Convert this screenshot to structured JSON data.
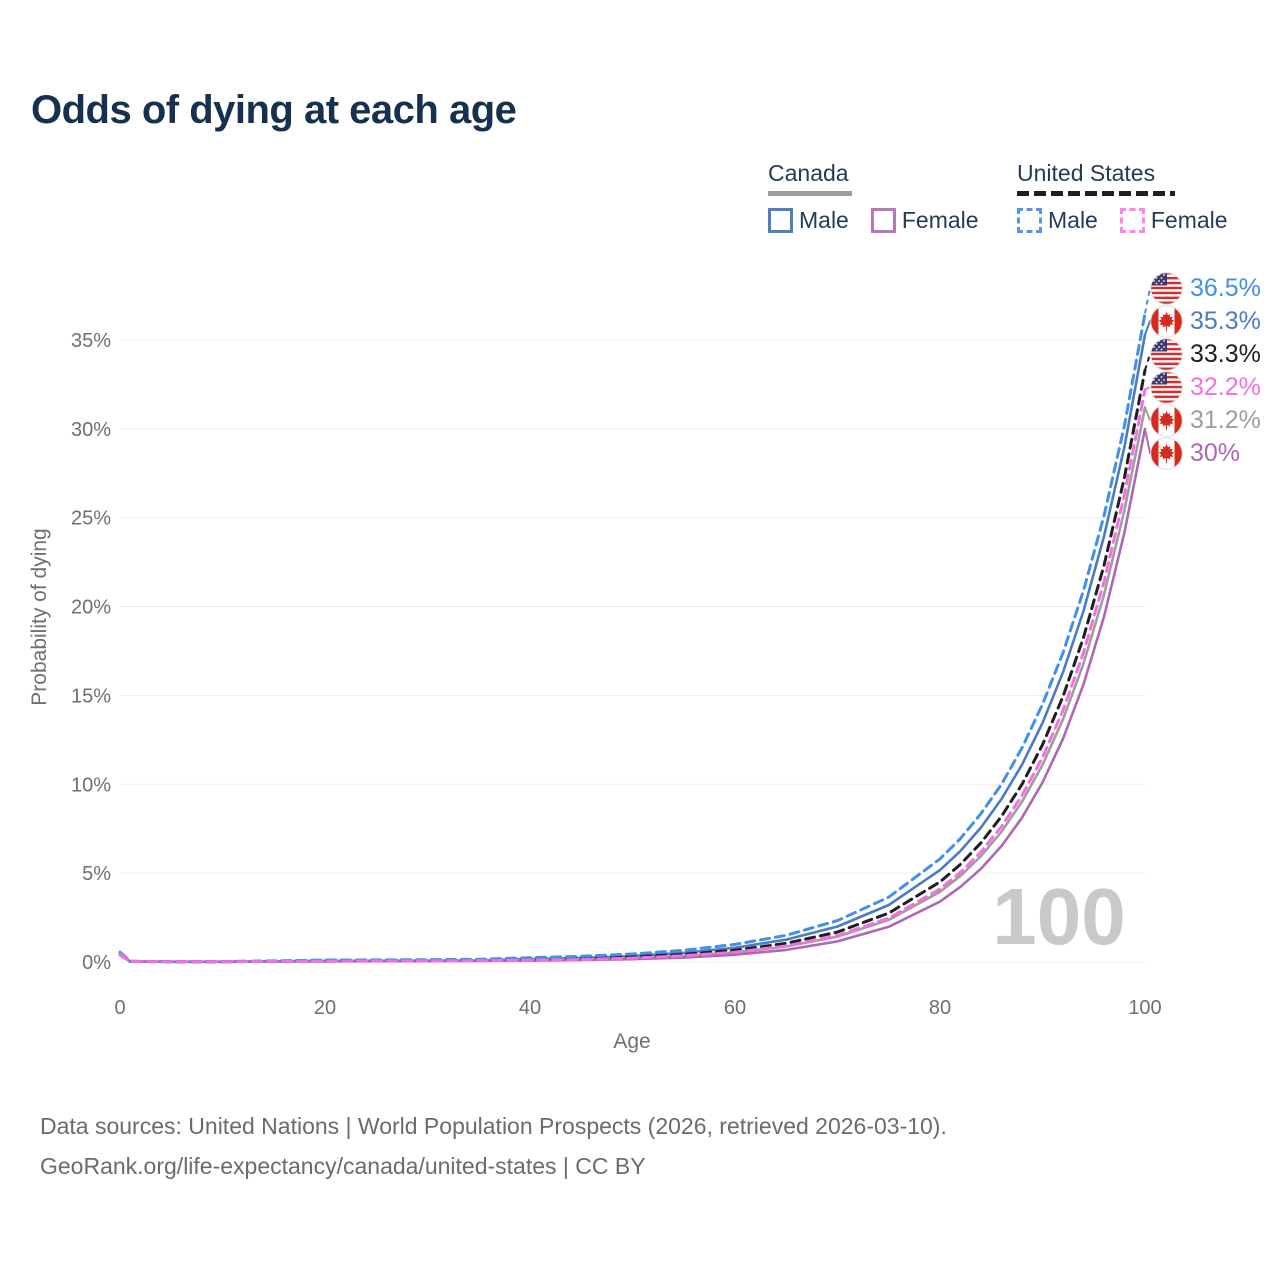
{
  "title": "Odds of dying at each age",
  "legend": {
    "groups": [
      {
        "name": "Canada",
        "line_style": "solid",
        "header_line_color": "#9e9e9e",
        "items": [
          {
            "label": "Male",
            "color": "#4e7fc1"
          },
          {
            "label": "Female",
            "color": "#b579b9"
          }
        ]
      },
      {
        "name": "United States",
        "line_style": "dashed",
        "header_line_color": "#1f1f1f",
        "items": [
          {
            "label": "Male",
            "color": "#5596ec"
          },
          {
            "label": "Female",
            "color": "#fb85ea"
          }
        ]
      }
    ]
  },
  "chart_data": {
    "type": "line",
    "title": "Odds of dying at each age",
    "xlabel": "Age",
    "ylabel": "Probability of dying",
    "xlim": [
      0,
      100
    ],
    "ylim": [
      0,
      37
    ],
    "grid": true,
    "legend_position": "top-right",
    "watermark": "100",
    "x_ticks": {
      "values": [
        0,
        20,
        40,
        60,
        80,
        100
      ],
      "labels": [
        "0",
        "20",
        "40",
        "60",
        "80",
        "100"
      ]
    },
    "y_ticks": {
      "values": [
        0,
        5,
        10,
        15,
        20,
        25,
        30,
        35
      ],
      "labels": [
        "0%",
        "5%",
        "10%",
        "15%",
        "20%",
        "25%",
        "30%",
        "35%"
      ]
    },
    "series": [
      {
        "name": "United States Male",
        "country": "United States",
        "sex": "Male",
        "flag": "us",
        "color": "#4190ea",
        "dashed": true,
        "end_label": "36.5%",
        "end_value": 36.5,
        "points": [
          [
            0,
            0.55
          ],
          [
            1,
            0.04
          ],
          [
            5,
            0.02
          ],
          [
            10,
            0.02
          ],
          [
            15,
            0.06
          ],
          [
            20,
            0.11
          ],
          [
            25,
            0.12
          ],
          [
            30,
            0.13
          ],
          [
            35,
            0.15
          ],
          [
            40,
            0.24
          ],
          [
            45,
            0.32
          ],
          [
            50,
            0.45
          ],
          [
            55,
            0.66
          ],
          [
            60,
            0.99
          ],
          [
            65,
            1.5
          ],
          [
            70,
            2.33
          ],
          [
            75,
            3.65
          ],
          [
            80,
            5.8
          ],
          [
            82,
            6.95
          ],
          [
            84,
            8.35
          ],
          [
            86,
            10.0
          ],
          [
            88,
            12.05
          ],
          [
            90,
            14.5
          ],
          [
            92,
            17.4
          ],
          [
            94,
            20.9
          ],
          [
            96,
            25.1
          ],
          [
            98,
            30.2
          ],
          [
            100,
            36.5
          ]
        ]
      },
      {
        "name": "Canada Male",
        "country": "Canada",
        "sex": "Male",
        "flag": "ca",
        "color": "#4a7cbf",
        "dashed": false,
        "end_label": "35.3%",
        "end_value": 35.3,
        "points": [
          [
            0,
            0.48
          ],
          [
            1,
            0.03
          ],
          [
            5,
            0.015
          ],
          [
            10,
            0.015
          ],
          [
            15,
            0.04
          ],
          [
            20,
            0.07
          ],
          [
            25,
            0.075
          ],
          [
            30,
            0.08
          ],
          [
            35,
            0.09
          ],
          [
            40,
            0.17
          ],
          [
            45,
            0.23
          ],
          [
            50,
            0.34
          ],
          [
            55,
            0.52
          ],
          [
            60,
            0.8
          ],
          [
            65,
            1.26
          ],
          [
            70,
            2.0
          ],
          [
            75,
            3.21
          ],
          [
            80,
            5.17
          ],
          [
            82,
            6.25
          ],
          [
            84,
            7.57
          ],
          [
            86,
            9.17
          ],
          [
            88,
            11.1
          ],
          [
            90,
            13.45
          ],
          [
            92,
            16.3
          ],
          [
            94,
            19.75
          ],
          [
            96,
            23.95
          ],
          [
            98,
            29.0
          ],
          [
            100,
            35.3
          ]
        ]
      },
      {
        "name": "United States",
        "country": "United States",
        "sex": "Both",
        "flag": "us",
        "color": "#1f1f1f",
        "dashed": true,
        "end_label": "33.3%",
        "end_value": 33.3,
        "points": [
          [
            0,
            0.52
          ],
          [
            1,
            0.035
          ],
          [
            5,
            0.018
          ],
          [
            10,
            0.017
          ],
          [
            15,
            0.05
          ],
          [
            20,
            0.085
          ],
          [
            25,
            0.09
          ],
          [
            30,
            0.1
          ],
          [
            35,
            0.11
          ],
          [
            40,
            0.15
          ],
          [
            45,
            0.2
          ],
          [
            50,
            0.29
          ],
          [
            55,
            0.43
          ],
          [
            60,
            0.66
          ],
          [
            65,
            1.05
          ],
          [
            70,
            1.69
          ],
          [
            75,
            2.75
          ],
          [
            80,
            4.51
          ],
          [
            82,
            5.5
          ],
          [
            84,
            6.71
          ],
          [
            86,
            8.2
          ],
          [
            88,
            10.0
          ],
          [
            90,
            12.22
          ],
          [
            92,
            14.94
          ],
          [
            94,
            18.26
          ],
          [
            96,
            22.31
          ],
          [
            98,
            27.28
          ],
          [
            100,
            33.3
          ]
        ]
      },
      {
        "name": "United States Female",
        "country": "United States",
        "sex": "Female",
        "flag": "us",
        "color": "#f56fe3",
        "dashed": true,
        "end_label": "32.2%",
        "end_value": 32.2,
        "points": [
          [
            0,
            0.45
          ],
          [
            1,
            0.03
          ],
          [
            5,
            0.013
          ],
          [
            10,
            0.012
          ],
          [
            15,
            0.03
          ],
          [
            20,
            0.05
          ],
          [
            25,
            0.055
          ],
          [
            30,
            0.06
          ],
          [
            35,
            0.07
          ],
          [
            40,
            0.1
          ],
          [
            45,
            0.14
          ],
          [
            50,
            0.22
          ],
          [
            55,
            0.35
          ],
          [
            60,
            0.55
          ],
          [
            65,
            0.9
          ],
          [
            70,
            1.49
          ],
          [
            75,
            2.47
          ],
          [
            80,
            4.11
          ],
          [
            82,
            5.05
          ],
          [
            84,
            6.2
          ],
          [
            86,
            7.62
          ],
          [
            88,
            9.37
          ],
          [
            90,
            11.51
          ],
          [
            92,
            14.15
          ],
          [
            94,
            17.4
          ],
          [
            96,
            21.39
          ],
          [
            98,
            26.3
          ],
          [
            100,
            32.2
          ]
        ]
      },
      {
        "name": "Canada",
        "country": "Canada",
        "sex": "Both",
        "flag": "ca",
        "color": "#9e9e9e",
        "dashed": false,
        "end_label": "31.2%",
        "end_value": 31.2,
        "points": [
          [
            0,
            0.42
          ],
          [
            1,
            0.028
          ],
          [
            5,
            0.013
          ],
          [
            10,
            0.012
          ],
          [
            15,
            0.033
          ],
          [
            20,
            0.06
          ],
          [
            25,
            0.065
          ],
          [
            30,
            0.07
          ],
          [
            35,
            0.08
          ],
          [
            40,
            0.11
          ],
          [
            45,
            0.15
          ],
          [
            50,
            0.22
          ],
          [
            55,
            0.34
          ],
          [
            60,
            0.54
          ],
          [
            65,
            0.87
          ],
          [
            70,
            1.43
          ],
          [
            75,
            2.37
          ],
          [
            80,
            3.95
          ],
          [
            82,
            4.85
          ],
          [
            84,
            5.96
          ],
          [
            86,
            7.33
          ],
          [
            88,
            9.02
          ],
          [
            90,
            11.09
          ],
          [
            92,
            13.65
          ],
          [
            94,
            16.79
          ],
          [
            96,
            20.67
          ],
          [
            98,
            25.44
          ],
          [
            100,
            31.2
          ]
        ]
      },
      {
        "name": "Canada Female",
        "country": "Canada",
        "sex": "Female",
        "flag": "ca",
        "color": "#ab68b5",
        "dashed": false,
        "end_label": "30%",
        "end_value": 30.0,
        "points": [
          [
            0,
            0.38
          ],
          [
            1,
            0.024
          ],
          [
            5,
            0.01
          ],
          [
            10,
            0.009
          ],
          [
            15,
            0.02
          ],
          [
            20,
            0.035
          ],
          [
            25,
            0.04
          ],
          [
            30,
            0.045
          ],
          [
            35,
            0.055
          ],
          [
            40,
            0.075
          ],
          [
            45,
            0.11
          ],
          [
            50,
            0.16
          ],
          [
            55,
            0.25
          ],
          [
            60,
            0.41
          ],
          [
            65,
            0.68
          ],
          [
            70,
            1.16
          ],
          [
            75,
            1.98
          ],
          [
            80,
            3.4
          ],
          [
            82,
            4.23
          ],
          [
            84,
            5.25
          ],
          [
            86,
            6.53
          ],
          [
            88,
            8.12
          ],
          [
            90,
            10.1
          ],
          [
            92,
            12.56
          ],
          [
            94,
            15.62
          ],
          [
            96,
            19.43
          ],
          [
            98,
            24.18
          ],
          [
            100,
            30.0
          ]
        ]
      }
    ]
  },
  "footer": {
    "line1": "Data sources: United Nations | World Population Prospects (2026, retrieved 2026-03-10).",
    "line2": "GeoRank.org/life-expectancy/canada/united-states | CC BY"
  }
}
